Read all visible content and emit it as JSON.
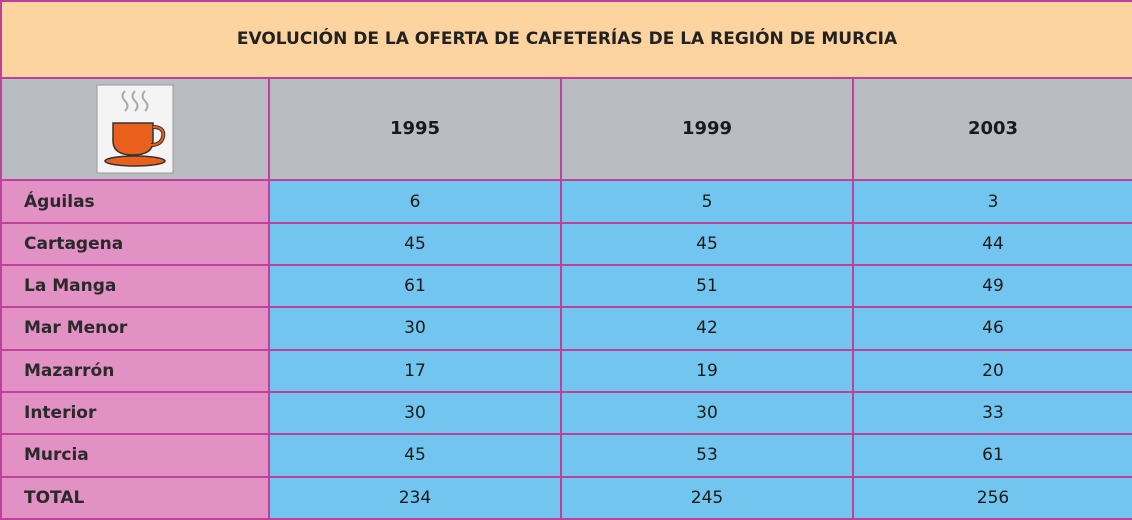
{
  "title": "EVOLUCIÓN DE LA OFERTA DE CAFETERÍAS DE LA REGIÓN DE MURCIA",
  "table": {
    "columns": [
      "1995",
      "1999",
      "2003"
    ],
    "rows": [
      [
        "Águilas",
        6,
        5,
        3
      ],
      [
        "Cartagena",
        45,
        45,
        44
      ],
      [
        "La Manga",
        61,
        51,
        49
      ],
      [
        "Mar Menor",
        30,
        42,
        46
      ],
      [
        "Mazarrón",
        17,
        19,
        20
      ],
      [
        "Interior",
        30,
        30,
        33
      ],
      [
        "Murcia",
        45,
        53,
        61
      ],
      [
        "TOTAL",
        234,
        245,
        256
      ]
    ]
  }
}
